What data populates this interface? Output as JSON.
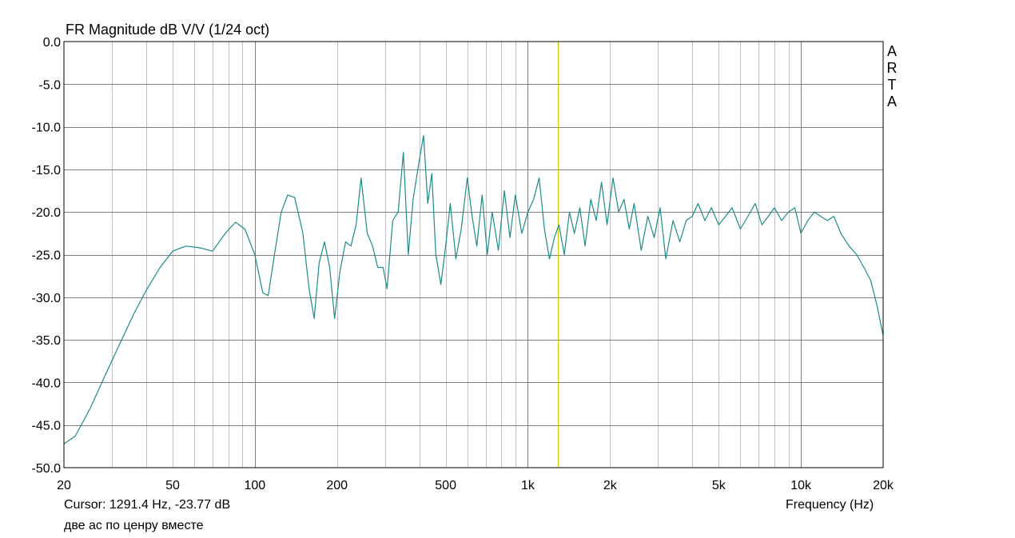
{
  "chart_data": {
    "type": "line",
    "title": "FR Magnitude dB V/V (1/24 oct)",
    "xlabel": "Frequency (Hz)",
    "ylabel": "",
    "xscale": "log",
    "xlim": [
      20,
      20000
    ],
    "ylim": [
      -50,
      0
    ],
    "grid": true,
    "y_ticks": [
      "0.0",
      "-5.0",
      "-10.0",
      "-15.0",
      "-20.0",
      "-25.0",
      "-30.0",
      "-35.0",
      "-40.0",
      "-45.0",
      "-50.0"
    ],
    "x_ticks": [
      "20",
      "50",
      "100",
      "200",
      "500",
      "1k",
      "2k",
      "5k",
      "10k",
      "20k"
    ],
    "cursor": {
      "frequency_hz": 1291.4,
      "value_db": -23.77
    },
    "series": [
      {
        "color": "#1f8a8a",
        "x": [
          20,
          22,
          25,
          28,
          32,
          36,
          40,
          45,
          50,
          56,
          63,
          70,
          78,
          85,
          92,
          100,
          107,
          112,
          118,
          125,
          132,
          140,
          150,
          158,
          165,
          172,
          180,
          188,
          196,
          205,
          215,
          225,
          235,
          245,
          258,
          270,
          282,
          295,
          305,
          320,
          335,
          350,
          365,
          380,
          400,
          415,
          430,
          445,
          460,
          480,
          500,
          520,
          545,
          570,
          600,
          625,
          650,
          680,
          710,
          740,
          780,
          820,
          860,
          900,
          950,
          1000,
          1050,
          1100,
          1150,
          1200,
          1250,
          1300,
          1360,
          1420,
          1480,
          1550,
          1620,
          1700,
          1780,
          1860,
          1950,
          2050,
          2150,
          2250,
          2350,
          2450,
          2600,
          2750,
          2900,
          3050,
          3200,
          3400,
          3600,
          3800,
          4000,
          4200,
          4450,
          4700,
          5000,
          5300,
          5600,
          6000,
          6400,
          6800,
          7200,
          7600,
          8000,
          8500,
          9000,
          9500,
          10000,
          10600,
          11200,
          11800,
          12500,
          13200,
          14000,
          15000,
          16000,
          17000,
          18000,
          19000,
          20000
        ],
        "values": [
          -47.2,
          -46.3,
          -43.0,
          -39.5,
          -35.5,
          -32.0,
          -29.2,
          -26.5,
          -24.6,
          -24.0,
          -24.2,
          -24.6,
          -22.5,
          -21.2,
          -22.0,
          -25.0,
          -29.5,
          -29.8,
          -25.0,
          -20.0,
          -18.0,
          -18.3,
          -22.5,
          -29.0,
          -32.5,
          -26.0,
          -23.5,
          -26.5,
          -32.5,
          -27.0,
          -23.5,
          -24.0,
          -21.5,
          -16.0,
          -22.5,
          -24.0,
          -26.5,
          -26.5,
          -29.0,
          -21.0,
          -20.0,
          -13.0,
          -25.0,
          -18.5,
          -14.0,
          -11.0,
          -19.0,
          -15.5,
          -25.0,
          -28.5,
          -24.0,
          -19.0,
          -25.5,
          -22.0,
          -16.0,
          -20.5,
          -24.0,
          -18.0,
          -25.0,
          -20.0,
          -24.5,
          -17.5,
          -23.0,
          -18.0,
          -22.5,
          -20.0,
          -18.5,
          -16.0,
          -22.0,
          -25.5,
          -23.0,
          -21.5,
          -25.0,
          -20.0,
          -22.5,
          -19.5,
          -24.0,
          -18.5,
          -21.0,
          -16.5,
          -21.5,
          -16.0,
          -20.0,
          -18.5,
          -22.0,
          -19.0,
          -24.5,
          -20.5,
          -23.0,
          -19.5,
          -25.5,
          -21.0,
          -23.5,
          -21.0,
          -20.5,
          -19.0,
          -21.0,
          -19.5,
          -21.5,
          -20.5,
          -19.5,
          -22.0,
          -20.5,
          -19.0,
          -21.5,
          -20.5,
          -19.5,
          -21.0,
          -20.0,
          -19.5,
          -22.5,
          -21.0,
          -20.0,
          -20.5,
          -21.0,
          -20.5,
          -22.5,
          -24.0,
          -25.0,
          -26.5,
          -28.0,
          -31.0,
          -34.5
        ]
      }
    ]
  },
  "cursor_readout": "Cursor: 1291.4 Hz, -23.77 dB",
  "note": "две ас по ценру вместе",
  "brand": [
    "A",
    "R",
    "T",
    "A"
  ],
  "colors": {
    "grid": "#c0c0c0",
    "axis": "#000000",
    "curve": "#1f8a8a",
    "cursor": "#c8c800"
  }
}
